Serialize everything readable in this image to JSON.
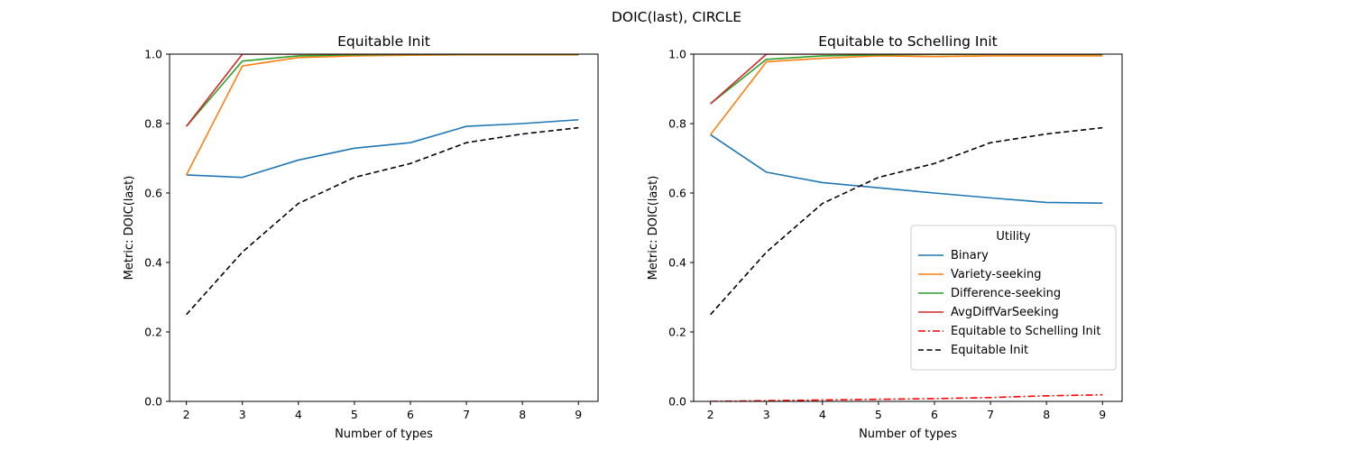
{
  "figure": {
    "title": "DOIC(last), CIRCLE"
  },
  "chart_data": [
    {
      "type": "line",
      "title": "Equitable Init",
      "xlabel": "Number of types",
      "ylabel": "Metric: DOIC(last)",
      "x": [
        2,
        3,
        4,
        5,
        6,
        7,
        8,
        9
      ],
      "xlim": [
        1.7,
        9.35
      ],
      "ylim": [
        0.0,
        1.0
      ],
      "xticks": [
        "2",
        "3",
        "4",
        "5",
        "6",
        "7",
        "8",
        "9"
      ],
      "yticks": [
        "0.0",
        "0.2",
        "0.4",
        "0.6",
        "0.8",
        "1.0"
      ],
      "grid": false,
      "series": [
        {
          "name": "Binary",
          "color": "#1f77b4",
          "dash": "solid",
          "values": [
            0.652,
            0.645,
            0.695,
            0.729,
            0.745,
            0.792,
            0.8,
            0.811
          ]
        },
        {
          "name": "Variety-seeking",
          "color": "#ff7f0e",
          "dash": "solid",
          "values": [
            0.652,
            0.966,
            0.99,
            0.995,
            0.997,
            0.998,
            0.998,
            0.998
          ]
        },
        {
          "name": "Difference-seeking",
          "color": "#2ca02c",
          "dash": "solid",
          "values": [
            0.792,
            0.98,
            0.995,
            0.998,
            0.999,
            0.999,
            0.999,
            0.999
          ]
        },
        {
          "name": "AvgDiffVarSeeking",
          "color": "#d62728",
          "dash": "solid",
          "values": [
            0.792,
            1.0,
            1.0,
            1.0,
            1.0,
            1.0,
            1.0,
            1.0
          ]
        },
        {
          "name": "Equitable Init",
          "color": "#000000",
          "dash": "dashed",
          "values": [
            0.25,
            0.43,
            0.57,
            0.645,
            0.685,
            0.745,
            0.77,
            0.788
          ]
        }
      ]
    },
    {
      "type": "line",
      "title": "Equitable to Schelling Init",
      "xlabel": "Number of types",
      "ylabel": "Metric: DOIC(last)",
      "x": [
        2,
        3,
        4,
        5,
        6,
        7,
        8,
        9
      ],
      "xlim": [
        1.7,
        9.35
      ],
      "ylim": [
        0.0,
        1.0
      ],
      "xticks": [
        "2",
        "3",
        "4",
        "5",
        "6",
        "7",
        "8",
        "9"
      ],
      "yticks": [
        "0.0",
        "0.2",
        "0.4",
        "0.6",
        "0.8",
        "1.0"
      ],
      "grid": false,
      "legend": {
        "title": "Utility",
        "placement": "lower-right"
      },
      "series": [
        {
          "name": "Binary",
          "color": "#1f77b4",
          "dash": "solid",
          "values": [
            0.768,
            0.66,
            0.63,
            0.615,
            0.6,
            0.586,
            0.573,
            0.571
          ]
        },
        {
          "name": "Variety-seeking",
          "color": "#ff7f0e",
          "dash": "solid",
          "values": [
            0.768,
            0.978,
            0.988,
            0.995,
            0.993,
            0.995,
            0.995,
            0.995
          ]
        },
        {
          "name": "Difference-seeking",
          "color": "#2ca02c",
          "dash": "solid",
          "values": [
            0.857,
            0.985,
            0.995,
            0.998,
            0.999,
            0.999,
            0.999,
            0.999
          ]
        },
        {
          "name": "AvgDiffVarSeeking",
          "color": "#d62728",
          "dash": "solid",
          "values": [
            0.857,
            1.0,
            1.0,
            1.0,
            1.0,
            1.0,
            1.0,
            1.0
          ]
        },
        {
          "name": "Equitable to Schelling Init",
          "color": "#ff0000",
          "dash": "dashdot",
          "values": [
            0.0,
            0.002,
            0.004,
            0.006,
            0.008,
            0.011,
            0.016,
            0.019
          ]
        },
        {
          "name": "Equitable Init",
          "color": "#000000",
          "dash": "dashed",
          "values": [
            0.25,
            0.43,
            0.57,
            0.645,
            0.685,
            0.745,
            0.77,
            0.788
          ]
        }
      ]
    }
  ]
}
